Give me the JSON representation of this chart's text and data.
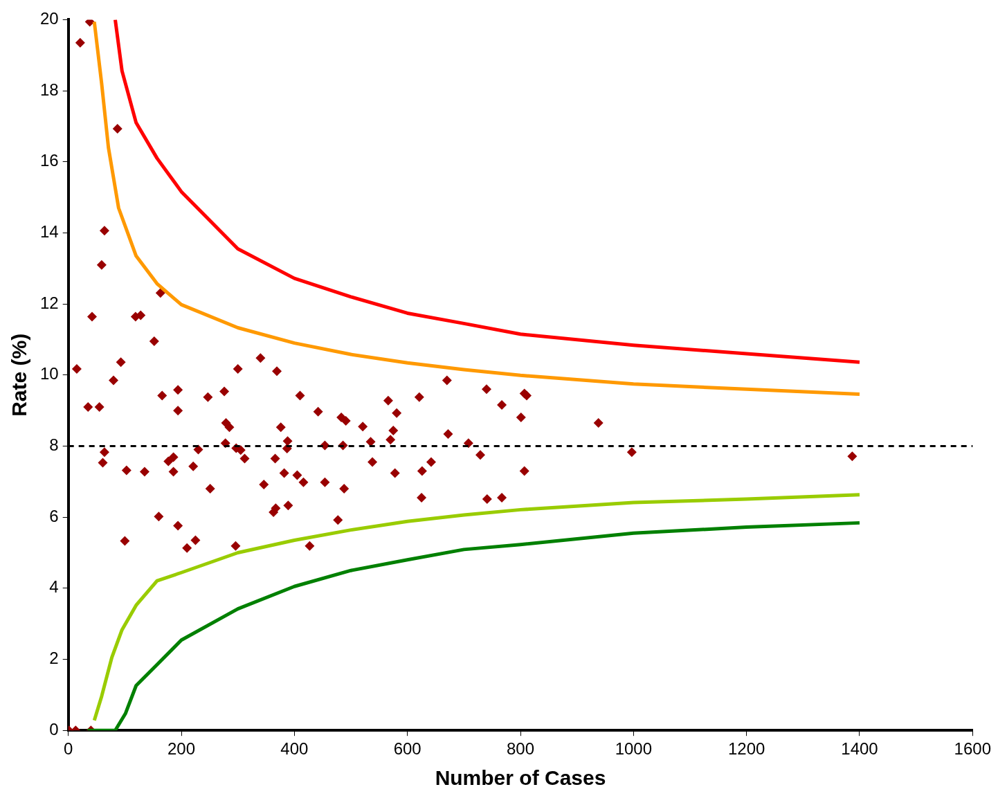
{
  "chart_data": {
    "type": "scatter",
    "xlabel": "Number of Cases",
    "ylabel": "Rate (%)",
    "xlim": [
      0,
      1600
    ],
    "xticks": [
      0,
      200,
      400,
      600,
      800,
      1000,
      1200,
      1400,
      1600
    ],
    "ylim": [
      0,
      20
    ],
    "yticks": [
      0,
      2,
      4,
      6,
      8,
      10,
      12,
      14,
      16,
      18,
      20
    ],
    "grid": false,
    "legend": false,
    "ref_lines": [
      {
        "axis": "y",
        "value": 8,
        "color": "#000000",
        "line_style": "dashed"
      }
    ],
    "series": [
      {
        "type": "line",
        "marker": "none",
        "color": "#ff0000",
        "x": [
          83,
          95,
          120,
          157,
          200,
          300,
          400,
          500,
          600,
          700,
          800,
          1000,
          1200,
          1400
        ],
        "values": [
          20,
          18.56,
          17.1,
          16.1,
          15.16,
          13.55,
          12.72,
          12.2,
          11.74,
          11.45,
          11.15,
          10.84,
          10.6,
          10.36
        ]
      },
      {
        "type": "line",
        "marker": "none",
        "color": "#ff9900",
        "x": [
          46,
          59,
          71,
          89,
          120,
          157,
          200,
          300,
          400,
          500,
          600,
          700,
          800,
          1000,
          1200,
          1400
        ],
        "values": [
          19.94,
          18.2,
          16.4,
          14.7,
          13.35,
          12.57,
          11.98,
          11.33,
          10.9,
          10.58,
          10.34,
          10.15,
          9.99,
          9.75,
          9.6,
          9.46
        ]
      },
      {
        "type": "line",
        "marker": "none",
        "color": "#99cc00",
        "x": [
          46,
          59,
          77,
          95,
          120,
          157,
          200,
          300,
          400,
          500,
          600,
          700,
          800,
          1000,
          1200,
          1400
        ],
        "values": [
          0.28,
          0.96,
          2.05,
          2.83,
          3.52,
          4.21,
          4.44,
          5.0,
          5.35,
          5.64,
          5.88,
          6.06,
          6.21,
          6.41,
          6.51,
          6.63
        ]
      },
      {
        "type": "line",
        "marker": "none",
        "color": "#008000",
        "x": [
          34,
          83,
          101,
          120,
          157,
          200,
          300,
          400,
          500,
          600,
          700,
          800,
          1000,
          1200,
          1400
        ],
        "values": [
          0,
          0,
          0.47,
          1.26,
          1.85,
          2.54,
          3.42,
          4.05,
          4.5,
          4.8,
          5.09,
          5.23,
          5.55,
          5.72,
          5.84
        ]
      },
      {
        "type": "scatter",
        "marker": "diamond",
        "color": "#990000",
        "x": [
          1,
          13,
          40,
          15,
          21,
          38,
          35,
          42,
          55,
          59,
          64,
          64,
          61,
          80,
          87,
          93,
          100,
          103,
          119,
          128,
          135,
          152,
          163,
          160,
          166,
          177,
          186,
          186,
          194,
          194,
          194,
          210,
          221,
          225,
          230,
          247,
          251,
          276,
          279,
          285,
          278,
          296,
          300,
          297,
          305,
          312,
          340,
          346,
          369,
          376,
          366,
          363,
          367,
          382,
          388,
          387,
          389,
          405,
          410,
          416,
          427,
          442,
          454,
          454,
          477,
          483,
          486,
          491,
          488,
          521,
          535,
          538,
          566,
          575,
          570,
          581,
          578,
          621,
          626,
          625,
          642,
          670,
          672,
          708,
          729,
          740,
          741,
          767,
          767,
          801,
          807,
          811,
          807,
          938,
          997,
          1387
        ],
        "values": [
          0,
          0,
          0,
          10.17,
          19.35,
          19.94,
          9.1,
          11.64,
          9.1,
          13.1,
          14.06,
          7.83,
          7.53,
          9.85,
          16.93,
          10.36,
          5.33,
          7.32,
          11.64,
          11.68,
          7.28,
          10.95,
          12.31,
          6.02,
          9.42,
          7.57,
          7.69,
          7.28,
          5.76,
          9.0,
          9.58,
          5.13,
          7.43,
          5.35,
          7.9,
          9.38,
          6.8,
          9.54,
          8.65,
          8.53,
          8.08,
          5.19,
          10.17,
          7.94,
          7.89,
          7.65,
          10.48,
          6.92,
          10.11,
          8.53,
          7.65,
          6.14,
          6.25,
          7.24,
          8.14,
          7.93,
          6.33,
          7.18,
          9.42,
          6.98,
          5.19,
          8.97,
          6.98,
          8.02,
          5.92,
          8.81,
          8.02,
          8.71,
          6.8,
          8.55,
          8.12,
          7.55,
          9.28,
          8.44,
          8.18,
          8.93,
          7.24,
          9.38,
          7.3,
          6.55,
          7.55,
          9.85,
          8.34,
          8.08,
          7.75,
          9.6,
          6.51,
          9.16,
          6.55,
          8.81,
          9.48,
          9.42,
          7.3,
          8.65,
          7.83,
          7.71
        ]
      }
    ]
  }
}
